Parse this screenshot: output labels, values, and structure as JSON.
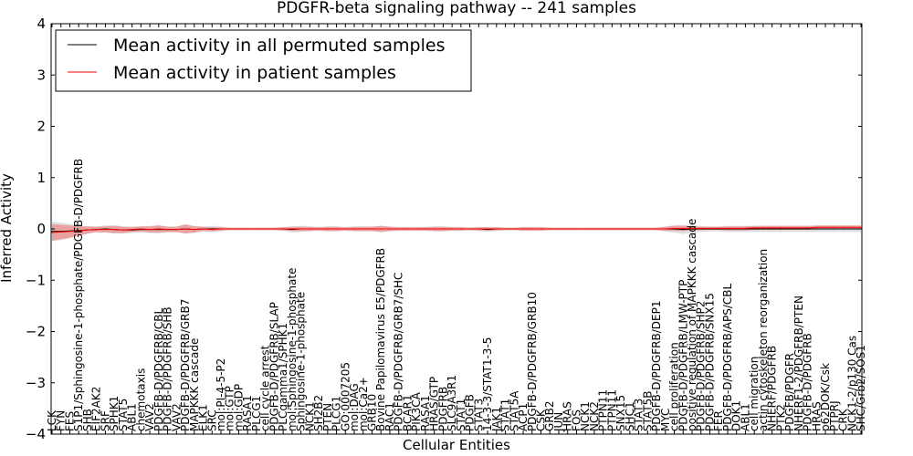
{
  "chart_data": {
    "type": "line",
    "title": "PDGFR-beta signaling pathway -- 241 samples",
    "xlabel": "Cellular Entities",
    "ylabel": "Inferred Activity",
    "ylim": [
      -4,
      4
    ],
    "yticks": [
      -4,
      -3,
      -2,
      -1,
      0,
      1,
      2,
      3,
      4
    ],
    "ytick_labels": [
      "−4",
      "−3",
      "−2",
      "−1",
      "0",
      "1",
      "2",
      "3",
      "4"
    ],
    "legend_position": "top-left",
    "categories": [
      "LCK",
      "FYN",
      "FES",
      "S1P1/Sphingosine-1-phosphate/PDGFB-D/PDGFRB",
      "SHB",
      "EIF2AK2",
      "SRF",
      "SPHK1",
      "STAT5",
      "ABL1",
      "chemotaxis",
      "VAV2",
      "PDGFB-D/PDGFRB/CBL",
      "PDGFB-D/PDGFRB/SHB",
      "VAV2",
      "PDGFB-D/PDGFRB/GRB7",
      "MAPKKK cascade",
      "ELK1",
      "SRC",
      "mol:PI-4-5-P2",
      "mol:GTP",
      "mol:GDP",
      "RASA1",
      "PLCG1",
      "cell cycle arrest",
      "PDGFB-D/PDGFRB/SLAP",
      "PLCgamma1/SPHK1",
      "mol:Sphingosine-1-phosphate",
      "Sphingosine-1-phosphate",
      "NCK1",
      "SH2B2",
      "PTEN",
      "PLCG1",
      "GO:0007205",
      "mol:DAG",
      "mol:Ca2+",
      "GRB10",
      "Bovine Papilomavirus E5/PDGFRB",
      "RAC1",
      "PDGFB-D/PDGFRB/GRB7/SHC",
      "BCAR1",
      "PIK3CA",
      "RASA1",
      "HRAS/GTP",
      "PDGFRB",
      "SLC9A3R1",
      "STAT1",
      "PDGFB",
      "STAT3",
      "14-3-3/STAT1-3-5",
      "JAK1",
      "STAT1",
      "STAT5A",
      "ACP1",
      "PDGFB-D/PDGFRB/GRB10",
      "CSK",
      "GRB2",
      "JUN",
      "HRAS",
      "FOS",
      "NCK1",
      "NCK2",
      "PTPN11",
      "PTPN11",
      "SNX15",
      "SHC1",
      "STAT3",
      "STAT5B",
      "PDGFB-D/PDGFRB/DEP1",
      "MYC",
      "cell proliferation",
      "PDGFB-D/PDGFRB/LMW-PTP",
      "positive regulation of MAPKKK cascade",
      "PDGFB-D/PDGFRB/SHP2",
      "PDGFB-D/PDGFRB/SNX15",
      "FER",
      "PDGFB-D/PDGFRB/APS/CBL",
      "DOK1",
      "ABL1",
      "cell migration",
      "actin cytoskeleton reorganization",
      "NHERF/PDGFRB",
      "PTK2",
      "PDGFB/PDGFR",
      "NHERF1-2/PDGFRB/PTEN",
      "PDGFB-D/PDGFRB",
      "HRAS",
      "p62DOK/Csk",
      "PTPRJ",
      "CRK",
      "NCK1-2/p130 Cas",
      "SHC/Grb2/SOS1"
    ],
    "series": [
      {
        "name": "Mean activity in all permuted samples",
        "color": "#000000",
        "values": [
          -0.05,
          -0.05,
          -0.04,
          -0.03,
          -0.02,
          -0.01,
          0.0,
          -0.01,
          -0.02,
          -0.02,
          -0.01,
          -0.01,
          -0.01,
          -0.01,
          -0.01,
          0.0,
          -0.01,
          0.0,
          0.0,
          0.0,
          0.0,
          0.0,
          0.0,
          0.0,
          0.0,
          0.0,
          0.0,
          -0.01,
          0.0,
          0.0,
          0.0,
          0.0,
          0.0,
          0.0,
          0.0,
          0.0,
          0.0,
          0.0,
          0.0,
          0.0,
          0.0,
          0.0,
          0.0,
          0.0,
          0.0,
          0.0,
          0.0,
          0.0,
          0.0,
          -0.01,
          0.0,
          0.0,
          0.0,
          0.0,
          0.0,
          0.0,
          0.0,
          0.0,
          0.0,
          0.0,
          0.0,
          0.0,
          0.0,
          0.0,
          0.0,
          0.0,
          0.0,
          0.0,
          0.0,
          0.0,
          0.0,
          -0.01,
          0.0,
          0.0,
          0.0,
          0.0,
          0.0,
          0.0,
          0.0,
          0.0,
          0.0,
          0.0,
          0.0,
          0.0,
          0.0,
          0.0,
          0.0,
          0.0,
          0.0,
          0.0,
          0.0,
          0.0
        ],
        "band": [
          0.19,
          0.17,
          0.14,
          0.1,
          0.07,
          0.06,
          0.07,
          0.08,
          0.07,
          0.06,
          0.06,
          0.07,
          0.08,
          0.06,
          0.06,
          0.08,
          0.07,
          0.05,
          0.06,
          0.05,
          0.03,
          0.03,
          0.03,
          0.03,
          0.03,
          0.03,
          0.04,
          0.06,
          0.06,
          0.05,
          0.04,
          0.05,
          0.05,
          0.04,
          0.05,
          0.05,
          0.05,
          0.06,
          0.05,
          0.04,
          0.04,
          0.04,
          0.04,
          0.05,
          0.05,
          0.04,
          0.04,
          0.03,
          0.04,
          0.05,
          0.04,
          0.03,
          0.03,
          0.04,
          0.04,
          0.04,
          0.03,
          0.03,
          0.03,
          0.03,
          0.03,
          0.03,
          0.03,
          0.03,
          0.03,
          0.03,
          0.03,
          0.03,
          0.03,
          0.05,
          0.07,
          0.09,
          0.07,
          0.06,
          0.05,
          0.05,
          0.06,
          0.06,
          0.06,
          0.06,
          0.06,
          0.06,
          0.06,
          0.06,
          0.06,
          0.06,
          0.06,
          0.06,
          0.06,
          0.06,
          0.06,
          0.06
        ]
      },
      {
        "name": "Mean activity in patient samples",
        "color": "#ff0000",
        "values": [
          -0.07,
          -0.06,
          -0.05,
          -0.04,
          -0.02,
          -0.01,
          -0.01,
          -0.01,
          -0.02,
          -0.01,
          0.0,
          -0.01,
          0.0,
          -0.01,
          -0.01,
          0.0,
          -0.01,
          0.0,
          -0.01,
          0.0,
          0.0,
          0.0,
          0.0,
          0.0,
          0.0,
          0.0,
          0.0,
          0.0,
          0.0,
          0.0,
          0.0,
          0.0,
          0.0,
          0.0,
          0.0,
          0.0,
          0.0,
          0.0,
          0.0,
          0.0,
          0.0,
          0.0,
          0.0,
          0.0,
          0.0,
          0.0,
          0.0,
          0.0,
          0.0,
          0.0,
          0.0,
          0.0,
          0.0,
          0.0,
          0.0,
          0.0,
          0.0,
          0.0,
          0.0,
          0.0,
          0.0,
          0.0,
          0.0,
          0.0,
          0.0,
          0.0,
          0.0,
          0.0,
          0.0,
          0.0,
          0.01,
          0.01,
          0.01,
          0.01,
          0.01,
          0.01,
          0.01,
          0.01,
          0.01,
          0.02,
          0.02,
          0.02,
          0.02,
          0.02,
          0.02,
          0.02,
          0.03,
          0.03,
          0.03,
          0.03,
          0.03,
          0.03
        ],
        "band": [
          0.16,
          0.14,
          0.12,
          0.09,
          0.07,
          0.05,
          0.06,
          0.07,
          0.06,
          0.05,
          0.05,
          0.06,
          0.07,
          0.05,
          0.05,
          0.09,
          0.06,
          0.04,
          0.04,
          0.03,
          0.02,
          0.02,
          0.02,
          0.02,
          0.02,
          0.02,
          0.03,
          0.04,
          0.04,
          0.04,
          0.03,
          0.04,
          0.04,
          0.03,
          0.04,
          0.04,
          0.04,
          0.06,
          0.04,
          0.03,
          0.03,
          0.03,
          0.03,
          0.04,
          0.04,
          0.03,
          0.03,
          0.02,
          0.03,
          0.03,
          0.03,
          0.02,
          0.02,
          0.03,
          0.03,
          0.03,
          0.02,
          0.02,
          0.02,
          0.02,
          0.02,
          0.02,
          0.02,
          0.02,
          0.02,
          0.02,
          0.02,
          0.02,
          0.02,
          0.04,
          0.05,
          0.05,
          0.04,
          0.03,
          0.03,
          0.03,
          0.04,
          0.04,
          0.04,
          0.04,
          0.04,
          0.04,
          0.04,
          0.04,
          0.04,
          0.04,
          0.04,
          0.04,
          0.04,
          0.04,
          0.04,
          0.04
        ]
      }
    ]
  }
}
